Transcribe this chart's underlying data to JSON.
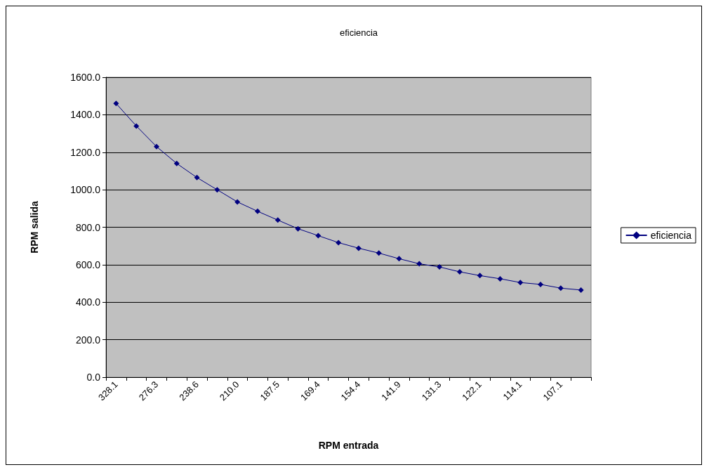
{
  "chart_data": {
    "type": "line",
    "title": "eficiencia",
    "xlabel": "RPM entrada",
    "ylabel": "RPM salida",
    "categories": [
      "328.1",
      null,
      "276.3",
      null,
      "238.6",
      null,
      "210.0",
      null,
      "187.5",
      null,
      "169.4",
      null,
      "154.4",
      null,
      "141.9",
      null,
      "131.3",
      null,
      "122.1",
      null,
      "114.1",
      null,
      "107.1",
      null
    ],
    "series": [
      {
        "name": "eficiencia",
        "color": "#000080",
        "values": [
          1460,
          1340,
          1230,
          1140,
          1065,
          1000,
          935,
          885,
          838,
          792,
          755,
          718,
          688,
          662,
          632,
          605,
          588,
          562,
          542,
          525,
          505,
          495,
          475,
          465
        ]
      }
    ],
    "ylim": [
      0,
      1600
    ],
    "yticks": [
      {
        "value": 0,
        "label": "0.0"
      },
      {
        "value": 200,
        "label": "200.0"
      },
      {
        "value": 400,
        "label": "400.0"
      },
      {
        "value": 600,
        "label": "600.0"
      },
      {
        "value": 800,
        "label": "800.0"
      },
      {
        "value": 1000,
        "label": "1000.0"
      },
      {
        "value": 1200,
        "label": "1200.0"
      },
      {
        "value": 1400,
        "label": "1400.0"
      },
      {
        "value": 1600,
        "label": "1600.0"
      }
    ],
    "grid": "y",
    "legend": "right",
    "marker": "diamond",
    "line_style": "solid"
  }
}
